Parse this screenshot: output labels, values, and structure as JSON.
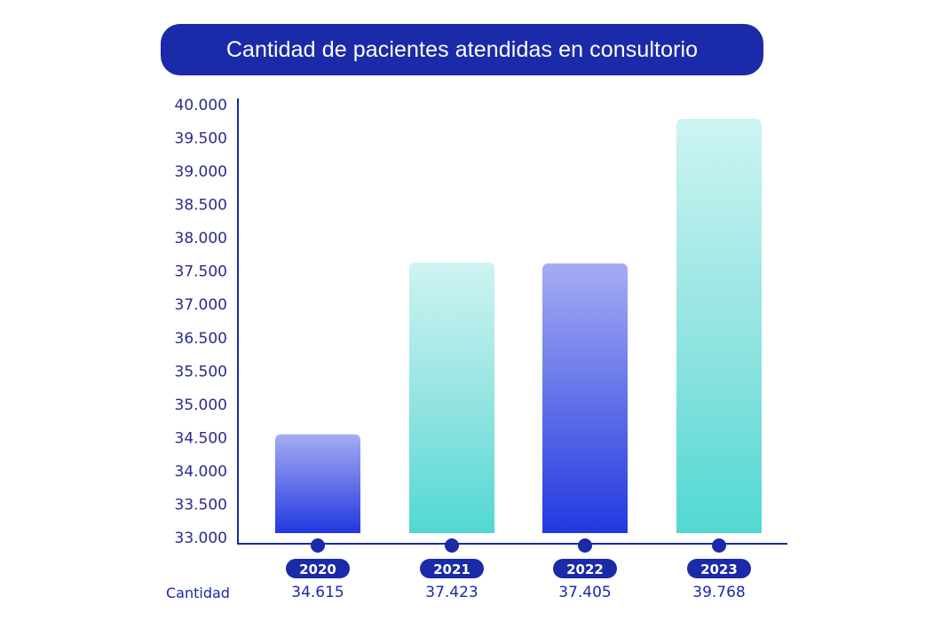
{
  "title": "Cantidad de pacientes atendidas en consultorio",
  "row_label": "Cantidad",
  "colors": {
    "title_bg": "#1b2aa8",
    "axis": "#1b2aa8",
    "blue_top": "#a6acf2",
    "blue_bottom": "#2238e0",
    "teal_top": "#cdf4f2",
    "teal_bottom": "#52d8d3"
  },
  "chart_data": {
    "type": "bar",
    "title": "Cantidad de pacientes atendidas en consultorio",
    "categories": [
      "2020",
      "2021",
      "2022",
      "2023"
    ],
    "values": [
      34615,
      37423,
      37405,
      39768
    ],
    "value_labels": [
      "34.615",
      "37.423",
      "37.405",
      "39.768"
    ],
    "bar_styles": [
      "blue",
      "teal",
      "blue",
      "teal"
    ],
    "y_ticks": [
      "40.000",
      "39.500",
      "39.000",
      "38.500",
      "38.000",
      "37.500",
      "37.000",
      "36.500",
      "35.500",
      "35.000",
      "34.500",
      "34.000",
      "33.500",
      "33.000"
    ],
    "ylim": [
      33000,
      40000
    ],
    "xlabel": "",
    "ylabel": "",
    "grid": false,
    "legend": "none"
  }
}
